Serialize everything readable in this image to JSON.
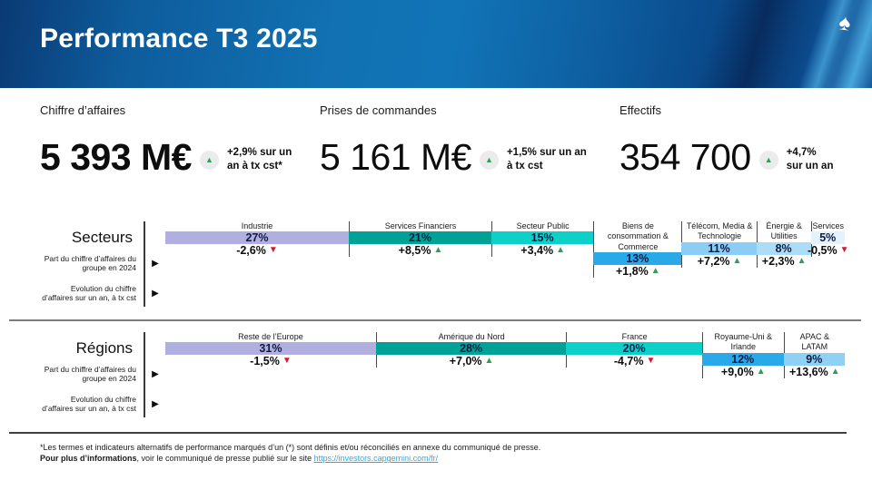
{
  "slide": {
    "title": "Performance T3 2025"
  },
  "icons": {
    "capgemini_spade": "♠",
    "row_marker": "▶",
    "up_arrow": "▲",
    "down_arrow": "▼"
  },
  "colors": {
    "positive": "#2e9e52",
    "negative": "#d6182e",
    "link": "#2aa9e9",
    "header_blue": "#1172b4",
    "bar_text": "#0d1b45"
  },
  "kpis": [
    {
      "label": "Chiffre d’affaires",
      "value": "5 393 M€",
      "trend": "up",
      "change": "+2,9% sur un\nan à tx cst*"
    },
    {
      "label": "Prises de commandes",
      "value": "5 161 M€",
      "trend": "up",
      "change": "+1,5% sur un an\nà tx cst"
    },
    {
      "label": "Effectifs",
      "value": "354 700",
      "trend": "up",
      "change": "+4,7%\nsur un an"
    }
  ],
  "chart_data": [
    {
      "type": "bar",
      "subtype": "100%-stacked-horizontal",
      "title": "Secteurs",
      "row_labels": [
        "Part du chiffre d’affaires du\ngroupe en 2024",
        "Evolution du chiffre\nd’affaires sur un an, à tx cst"
      ],
      "categories": [
        "Industrie",
        "Services Financiers",
        "Secteur Public",
        "Biens de consommation & Commerce",
        "Télécom, Media & Technologie",
        "Énergie & Utilities",
        "Services"
      ],
      "series": [
        {
          "name": "Part du chiffre d’affaires du groupe en 2024",
          "unit": "%",
          "values": [
            27,
            21,
            15,
            13,
            11,
            8,
            5
          ],
          "labels": [
            "27%",
            "21%",
            "15%",
            "13%",
            "11%",
            "8%",
            "5%"
          ]
        },
        {
          "name": "Evolution du chiffre d’affaires sur un an, à tx cst",
          "unit": "%",
          "values": [
            -2.6,
            8.5,
            3.4,
            1.8,
            7.2,
            2.3,
            -0.5
          ],
          "labels": [
            "-2,6%",
            "+8,5%",
            "+3,4%",
            "+1,8%",
            "+7,2%",
            "+2,3%",
            "-0,5%"
          ],
          "trends": [
            "down",
            "up",
            "up",
            "up",
            "up",
            "up",
            "down"
          ]
        }
      ],
      "colors": [
        "#b1afe0",
        "#00a296",
        "#0cd1c8",
        "#2aa9e9",
        "#8bcdf4",
        "#addcf8",
        "#e3f2fc"
      ],
      "xlim": [
        0,
        100
      ],
      "legend": false
    },
    {
      "type": "bar",
      "subtype": "100%-stacked-horizontal",
      "title": "Régions",
      "row_labels": [
        "Part du chiffre d’affaires du\ngroupe en 2024",
        "Evolution du chiffre\nd’affaires sur un an, à tx cst"
      ],
      "categories": [
        "Reste de l’Europe",
        "Amérique du Nord",
        "France",
        "Royaume-Uni & Irlande",
        "APAC & LATAM"
      ],
      "series": [
        {
          "name": "Part du chiffre d’affaires du groupe en 2024",
          "unit": "%",
          "values": [
            31,
            28,
            20,
            12,
            9
          ],
          "labels": [
            "31%",
            "28%",
            "20%",
            "12%",
            "9%"
          ]
        },
        {
          "name": "Evolution du chiffre d’affaires sur un an, à tx cst",
          "unit": "%",
          "values": [
            -1.5,
            7.0,
            -4.7,
            9.0,
            13.6
          ],
          "labels": [
            "-1,5%",
            "+7,0%",
            "-4,7%",
            "+9,0%",
            "+13,6%"
          ],
          "trends": [
            "down",
            "up",
            "down",
            "up",
            "up"
          ]
        }
      ],
      "colors": [
        "#b1afe0",
        "#00a296",
        "#0cd1c8",
        "#2aa9e9",
        "#8fd0f5"
      ],
      "xlim": [
        0,
        100
      ],
      "legend": false
    }
  ],
  "footer": {
    "note1": "*Les termes et indicateurs alternatifs de performance marqués d’un (*) sont définis et/ou réconciliés en annexe du communiqué de presse.",
    "note2_bold": "Pour plus d’informations",
    "note2_text": ", voir le communiqué de presse publié sur le site ",
    "note2_link": "https://investors.capgemini.com/fr/"
  }
}
